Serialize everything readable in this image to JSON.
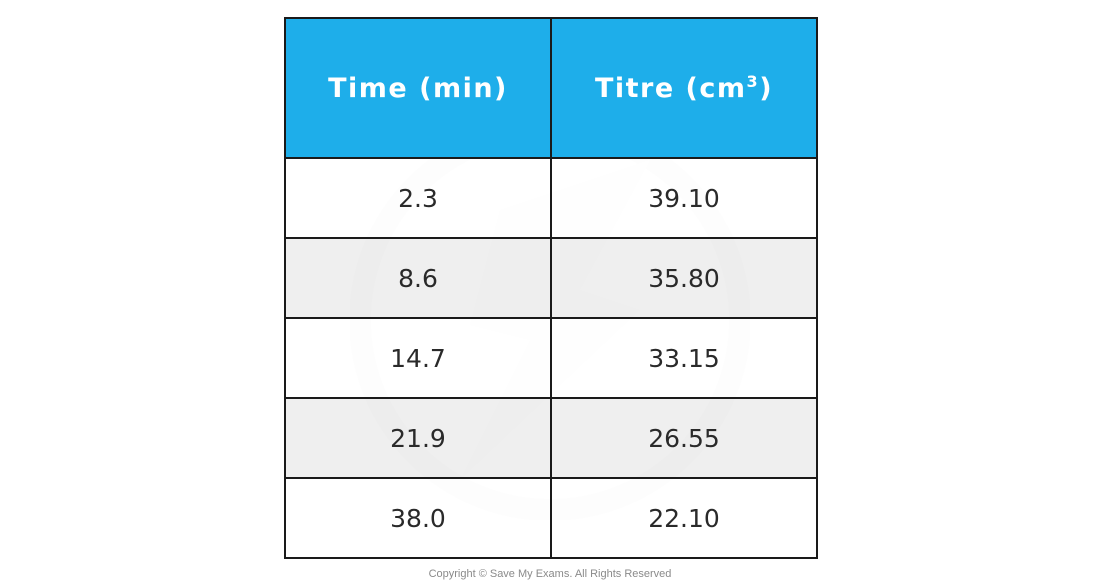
{
  "table": {
    "headers": {
      "time": "Time (min)",
      "titre": "Titre (cm",
      "titre_superscript": "3",
      "titre_close": ")"
    },
    "rows": [
      {
        "time": "2.3",
        "titre": "39.10"
      },
      {
        "time": "8.6",
        "titre": "35.80"
      },
      {
        "time": "14.7",
        "titre": "33.15"
      },
      {
        "time": "21.9",
        "titre": "26.55"
      },
      {
        "time": "38.0",
        "titre": "22.10"
      }
    ]
  },
  "footer": {
    "copyright": "Copyright © Save My Exams. All Rights Reserved"
  },
  "colors": {
    "header_bg": "#1eaeea",
    "header_text": "#ffffff",
    "shaded_row": "#ececec",
    "border": "#1a1a1a"
  }
}
